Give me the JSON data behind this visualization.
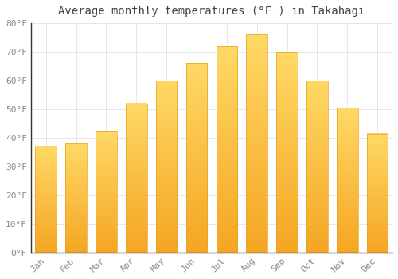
{
  "title": "Average monthly temperatures (°F ) in Takahagi",
  "months": [
    "Jan",
    "Feb",
    "Mar",
    "Apr",
    "May",
    "Jun",
    "Jul",
    "Aug",
    "Sep",
    "Oct",
    "Nov",
    "Dec"
  ],
  "values": [
    37,
    38,
    42.5,
    52,
    60,
    66,
    72,
    76,
    70,
    60,
    50.5,
    41.5
  ],
  "bar_color_bottom": "#F5A623",
  "bar_color_top": "#FFD966",
  "background_color": "#FFFFFF",
  "plot_bg_color": "#FFFFFF",
  "grid_color": "#DDDDDD",
  "ylim": [
    0,
    80
  ],
  "yticks": [
    0,
    10,
    20,
    30,
    40,
    50,
    60,
    70,
    80
  ],
  "ytick_labels": [
    "0°F",
    "10°F",
    "20°F",
    "30°F",
    "40°F",
    "50°F",
    "60°F",
    "70°F",
    "80°F"
  ],
  "tick_label_color": "#888888",
  "title_fontsize": 10,
  "tick_fontsize": 8,
  "font_family": "monospace"
}
